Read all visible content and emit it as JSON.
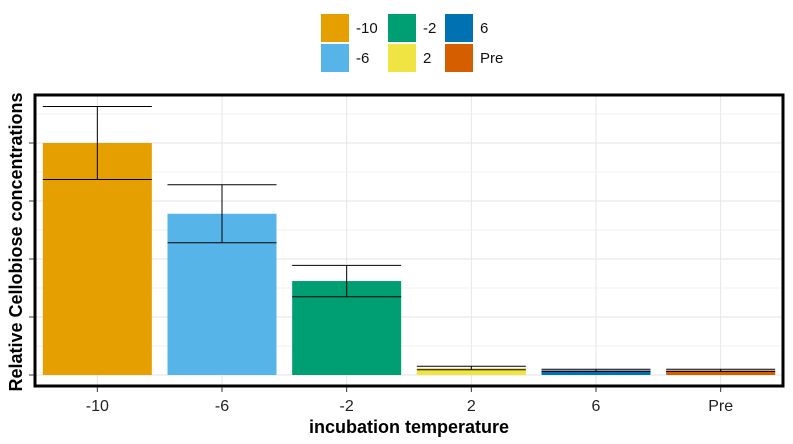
{
  "chart_data": {
    "type": "bar",
    "title": "",
    "xlabel": "incubation temperature",
    "ylabel": "Relative Cellobiose concentrations",
    "categories": [
      "-10",
      "-6",
      "-2",
      "2",
      "6",
      "Pre"
    ],
    "values": [
      4.0,
      2.78,
      1.62,
      0.12,
      0.08,
      0.08
    ],
    "errors": [
      0.63,
      0.5,
      0.27,
      0.03,
      0.02,
      0.02
    ],
    "colors": [
      "#E69F00",
      "#56B4E9",
      "#009E73",
      "#F0E442",
      "#0072B2",
      "#D55E00"
    ],
    "ylim": [
      0,
      4.7
    ],
    "grid": true,
    "y_tick_labels_shown": false,
    "legend": {
      "position": "top",
      "items": [
        {
          "label": "-10",
          "color": "#E69F00"
        },
        {
          "label": "-2",
          "color": "#009E73"
        },
        {
          "label": "6",
          "color": "#0072B2"
        },
        {
          "label": "-6",
          "color": "#56B4E9"
        },
        {
          "label": "2",
          "color": "#F0E442"
        },
        {
          "label": "Pre",
          "color": "#D55E00"
        }
      ]
    }
  }
}
